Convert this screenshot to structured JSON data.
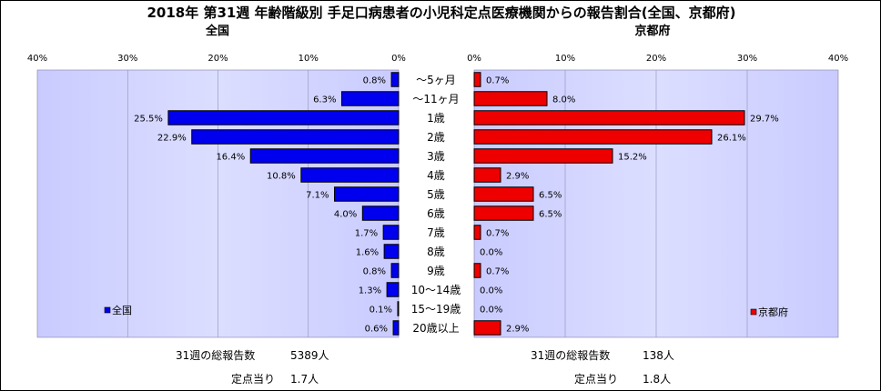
{
  "chart_data": {
    "type": "bar",
    "orientation": "horizontal",
    "title": "2018年 第31週 年齢階級別 手足口病患者の小児科定点医療機関からの報告割合(全国、京都府)",
    "categories": [
      "～5ヶ月",
      "～11ヶ月",
      "1歳",
      "2歳",
      "3歳",
      "4歳",
      "5歳",
      "6歳",
      "7歳",
      "8歳",
      "9歳",
      "10～14歳",
      "15～19歳",
      "20歳以上"
    ],
    "xlim": [
      0,
      40
    ],
    "ticks": [
      "0%",
      "10%",
      "20%",
      "30%",
      "40%"
    ],
    "series": [
      {
        "name": "全国",
        "panel_title": "全国",
        "color": "#0000ee",
        "values": [
          0.8,
          6.3,
          25.5,
          22.9,
          16.4,
          10.8,
          7.1,
          4.0,
          1.7,
          1.6,
          0.8,
          1.3,
          0.1,
          0.6
        ],
        "labels": [
          "0.8%",
          "6.3%",
          "25.5%",
          "22.9%",
          "16.4%",
          "10.8%",
          "7.1%",
          "4.0%",
          "1.7%",
          "1.6%",
          "0.8%",
          "1.3%",
          "0.1%",
          "0.6%"
        ]
      },
      {
        "name": "京都府",
        "panel_title": "京都府",
        "color": "#ee0000",
        "values": [
          0.7,
          8.0,
          29.7,
          26.1,
          15.2,
          2.9,
          6.5,
          6.5,
          0.7,
          0.0,
          0.7,
          0.0,
          0.0,
          2.9
        ],
        "labels": [
          "0.7%",
          "8.0%",
          "29.7%",
          "26.1%",
          "15.2%",
          "2.9%",
          "6.5%",
          "6.5%",
          "0.7%",
          "0.0%",
          "0.7%",
          "0.0%",
          "0.0%",
          "2.9%"
        ]
      }
    ],
    "plot_background": "#cfd1ff",
    "grid": true
  },
  "summary": {
    "national": {
      "total_label": "31週の総報告数",
      "total_value": "5389人",
      "per_label": "定点当り",
      "per_value": "1.7人"
    },
    "kyoto": {
      "total_label": "31週の総報告数",
      "total_value": "138人",
      "per_label": "定点当り",
      "per_value": "1.8人"
    }
  }
}
